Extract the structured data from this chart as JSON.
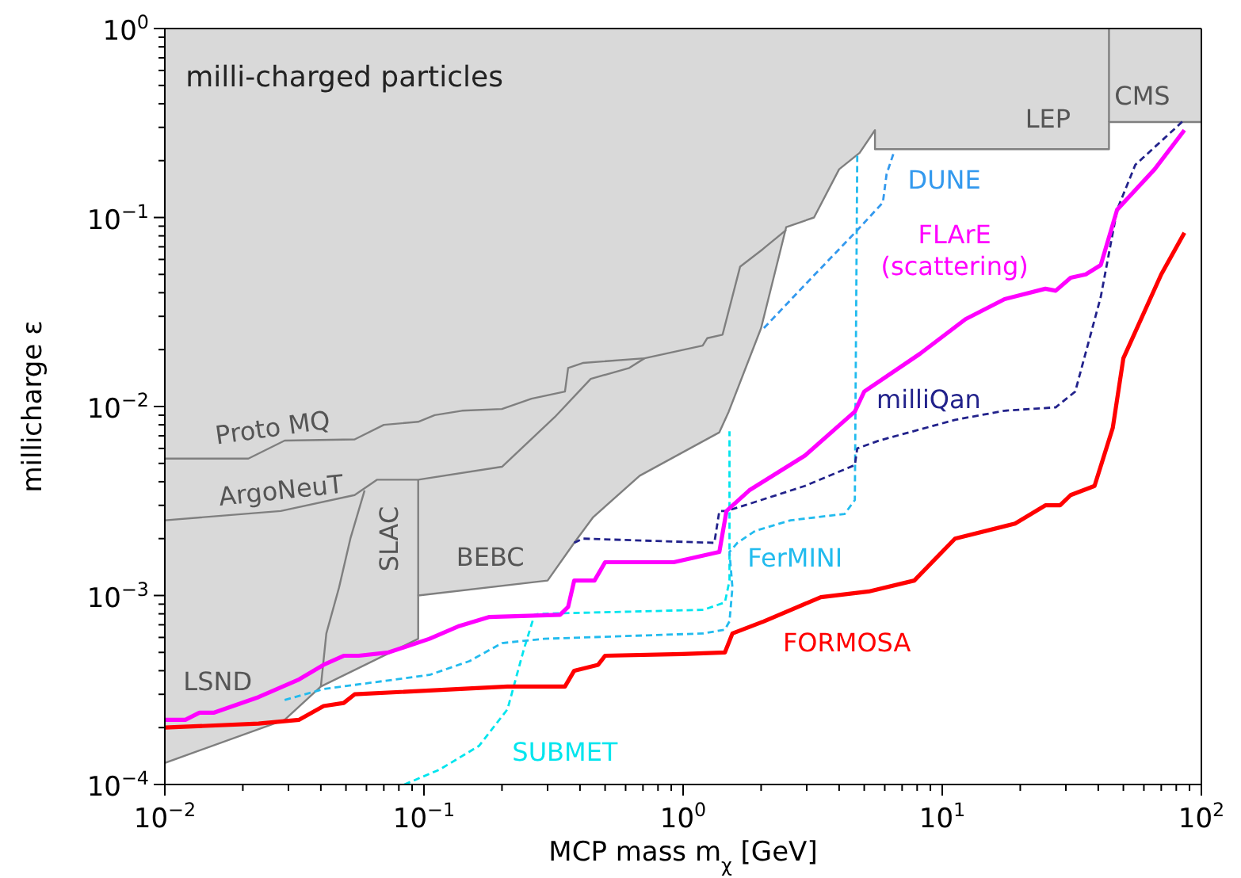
{
  "chart_data": {
    "type": "line",
    "xlabel": "MCP mass m$_{χ}$ [GeV]",
    "ylabel": "millicharge ε",
    "log": "xy",
    "xlim": [
      0.01,
      100
    ],
    "ylim": [
      0.0001,
      1
    ],
    "xticks": [
      {
        "value": 0.01,
        "label": "10$^{−2}$"
      },
      {
        "value": 0.02,
        "label": null
      },
      {
        "value": 0.03,
        "label": null
      },
      {
        "value": 0.04,
        "label": null
      },
      {
        "value": 0.05,
        "label": null
      },
      {
        "value": 0.06,
        "label": null
      },
      {
        "value": 0.07,
        "label": null
      },
      {
        "value": 0.08,
        "label": null
      },
      {
        "value": 0.09,
        "label": null
      },
      {
        "value": 0.1,
        "label": "10$^{−1}$"
      },
      {
        "value": 0.2,
        "label": null
      },
      {
        "value": 0.3,
        "label": null
      },
      {
        "value": 0.4,
        "label": null
      },
      {
        "value": 0.5,
        "label": null
      },
      {
        "value": 0.6,
        "label": null
      },
      {
        "value": 0.7,
        "label": null
      },
      {
        "value": 0.8,
        "label": null
      },
      {
        "value": 0.9,
        "label": null
      },
      {
        "value": 1,
        "label": "10$^{0}$"
      },
      {
        "value": 2,
        "label": null
      },
      {
        "value": 3,
        "label": null
      },
      {
        "value": 4,
        "label": null
      },
      {
        "value": 5,
        "label": null
      },
      {
        "value": 6,
        "label": null
      },
      {
        "value": 7,
        "label": null
      },
      {
        "value": 8,
        "label": null
      },
      {
        "value": 9,
        "label": null
      },
      {
        "value": 10,
        "label": "10$^{1}$"
      },
      {
        "value": 20,
        "label": null
      },
      {
        "value": 30,
        "label": null
      },
      {
        "value": 40,
        "label": null
      },
      {
        "value": 50,
        "label": null
      },
      {
        "value": 60,
        "label": null
      },
      {
        "value": 70,
        "label": null
      },
      {
        "value": 80,
        "label": null
      },
      {
        "value": 90,
        "label": null
      },
      {
        "value": 100,
        "label": "10$^{2}$"
      }
    ],
    "yticks": [
      {
        "value": 0.0001,
        "label": "10$^{−4}$"
      },
      {
        "value": 0.0002,
        "label": null
      },
      {
        "value": 0.0003,
        "label": null
      },
      {
        "value": 0.0004,
        "label": null
      },
      {
        "value": 0.0005,
        "label": null
      },
      {
        "value": 0.0006,
        "label": null
      },
      {
        "value": 0.0007,
        "label": null
      },
      {
        "value": 0.0008,
        "label": null
      },
      {
        "value": 0.0009,
        "label": null
      },
      {
        "value": 0.001,
        "label": "10$^{−3}$"
      },
      {
        "value": 0.002,
        "label": null
      },
      {
        "value": 0.003,
        "label": null
      },
      {
        "value": 0.004,
        "label": null
      },
      {
        "value": 0.005,
        "label": null
      },
      {
        "value": 0.006,
        "label": null
      },
      {
        "value": 0.007,
        "label": null
      },
      {
        "value": 0.008,
        "label": null
      },
      {
        "value": 0.009,
        "label": null
      },
      {
        "value": 0.01,
        "label": "10$^{−2}$"
      },
      {
        "value": 0.02,
        "label": null
      },
      {
        "value": 0.03,
        "label": null
      },
      {
        "value": 0.04,
        "label": null
      },
      {
        "value": 0.05,
        "label": null
      },
      {
        "value": 0.06,
        "label": null
      },
      {
        "value": 0.07,
        "label": null
      },
      {
        "value": 0.08,
        "label": null
      },
      {
        "value": 0.09,
        "label": null
      },
      {
        "value": 0.1,
        "label": "10$^{−1}$"
      },
      {
        "value": 0.2,
        "label": null
      },
      {
        "value": 0.3,
        "label": null
      },
      {
        "value": 0.4,
        "label": null
      },
      {
        "value": 0.5,
        "label": null
      },
      {
        "value": 0.6,
        "label": null
      },
      {
        "value": 0.7,
        "label": null
      },
      {
        "value": 0.8,
        "label": null
      },
      {
        "value": 0.9,
        "label": null
      },
      {
        "value": 1,
        "label": "10$^{0}$"
      }
    ],
    "series": [
      {
        "color": "#7f7f7f",
        "line_style": "solid",
        "x": [
          0.01,
          0.029,
          0.04,
          0.095,
          0.095,
          0.3,
          0.38,
          0.45,
          0.68,
          1.38,
          1.5,
          2.0,
          2.5,
          3.2,
          4.0,
          4.8,
          5.5,
          5.5,
          44,
          44,
          100
        ],
        "values": [
          0.00013,
          0.00022,
          0.00033,
          0.00059,
          0.001,
          0.0012,
          0.0019,
          0.0026,
          0.0043,
          0.0073,
          0.0094,
          0.026,
          0.089,
          0.1,
          0.18,
          0.22,
          0.29,
          0.23,
          0.23,
          0.32,
          0.32
        ],
        "lower": [
          0.00013,
          0.00022,
          0.00033,
          0.00059,
          0.001,
          0.0012,
          0.0019,
          0.0026,
          0.0043,
          0.0073,
          0.0094,
          0.026,
          0.089,
          0.1,
          0.18,
          0.22,
          0.29,
          0.23,
          0.23,
          0.32,
          0.32
        ],
        "upper": [
          1,
          1,
          1,
          1,
          1,
          1,
          1,
          1,
          1,
          1,
          1,
          1,
          1,
          1,
          1,
          1,
          1,
          1,
          1,
          1,
          1
        ]
      },
      {
        "color": "#7f7f7f",
        "line_style": "solid",
        "x": [
          0.059,
          0.052,
          0.047,
          0.042,
          0.04
        ],
        "values": [
          0.0036,
          0.002,
          0.0011,
          0.00063,
          0.00033
        ]
      },
      {
        "color": "#7f7f7f",
        "line_style": "solid",
        "x": [
          0.095,
          0.095
        ],
        "values": [
          0.0041,
          0.001
        ]
      },
      {
        "color": "#7f7f7f",
        "line_style": "solid",
        "x": [
          44,
          44
        ],
        "values": [
          1,
          0.32
        ]
      },
      {
        "color": "#7f7f7f",
        "line_style": "solid",
        "x": [
          0.01,
          0.028,
          0.054,
          0.066,
          0.095,
          0.2,
          0.32,
          0.44,
          0.62,
          0.71
        ],
        "values": [
          0.0025,
          0.0028,
          0.0034,
          0.0041,
          0.0041,
          0.0048,
          0.0088,
          0.014,
          0.016,
          0.018
        ]
      },
      {
        "color": "#7f7f7f",
        "line_style": "solid",
        "x": [
          0.01,
          0.021,
          0.029,
          0.054,
          0.07,
          0.095,
          0.11,
          0.14,
          0.2,
          0.26,
          0.35,
          0.36,
          0.41,
          0.71,
          1.19,
          1.24,
          1.42,
          1.66,
          2.03,
          2.5
        ],
        "values": [
          0.0053,
          0.0053,
          0.0066,
          0.0067,
          0.008,
          0.0083,
          0.009,
          0.0095,
          0.0097,
          0.011,
          0.012,
          0.016,
          0.017,
          0.018,
          0.021,
          0.023,
          0.024,
          0.055,
          0.068,
          0.086
        ]
      },
      {
        "name": "SUBMET",
        "color": "#00e5ee",
        "line_style": "dashed",
        "x": [
          0.084,
          0.115,
          0.163,
          0.21,
          0.243,
          0.267,
          0.28,
          1.2,
          1.45,
          1.51,
          1.51
        ],
        "values": [
          0.0001,
          0.00012,
          0.00016,
          0.00025,
          0.00052,
          0.00079,
          0.0008,
          0.00084,
          0.00092,
          0.0012,
          0.0074
        ]
      },
      {
        "name": "FerMINI",
        "color": "#22bbee",
        "line_style": "dashed",
        "x": [
          0.029,
          0.041,
          0.105,
          0.15,
          0.2,
          0.29,
          1.2,
          1.45,
          1.51,
          1.55,
          1.51,
          1.62,
          1.9,
          2.6,
          4.2,
          4.6,
          4.7
        ],
        "values": [
          0.00028,
          0.00032,
          0.00038,
          0.00045,
          0.00056,
          0.00059,
          0.00063,
          0.00066,
          0.00073,
          0.0011,
          0.0017,
          0.0019,
          0.0022,
          0.0025,
          0.0027,
          0.0032,
          0.22
        ]
      },
      {
        "name": "DUNE",
        "color": "#3399ee",
        "line_style": "dashed",
        "x": [
          2.05,
          2.95,
          4.6,
          5.9,
          6.1,
          6.5
        ],
        "values": [
          0.026,
          0.044,
          0.083,
          0.12,
          0.17,
          0.22
        ]
      },
      {
        "name": "milliQan",
        "color": "#22228b",
        "line_style": "dashed",
        "x": [
          0.38,
          0.41,
          1.32,
          1.38,
          1.47,
          1.73,
          2.95,
          4.6,
          4.7,
          5.7,
          11.2,
          17.4,
          27.4,
          32.6,
          40.9,
          47.3,
          55.6,
          80,
          86
        ],
        "values": [
          0.0019,
          0.002,
          0.0019,
          0.0028,
          0.0028,
          0.003,
          0.0038,
          0.0049,
          0.006,
          0.0066,
          0.0085,
          0.0095,
          0.0099,
          0.012,
          0.038,
          0.11,
          0.19,
          0.3,
          0.33
        ]
      },
      {
        "name": "FLArE (scattering)",
        "color": "#ff00ff",
        "line_style": "solid",
        "x": [
          0.01,
          0.012,
          0.0136,
          0.0155,
          0.023,
          0.033,
          0.041,
          0.049,
          0.056,
          0.073,
          0.105,
          0.137,
          0.179,
          0.335,
          0.36,
          0.38,
          0.455,
          0.5,
          0.92,
          1.38,
          1.47,
          1.8,
          2.95,
          4.6,
          5.0,
          8.2,
          12.3,
          17.4,
          25,
          27.4,
          31.3,
          35.8,
          40.9,
          47.3,
          66,
          86
        ],
        "values": [
          0.00022,
          0.00022,
          0.00024,
          0.00024,
          0.00029,
          0.00036,
          0.00043,
          0.00048,
          0.00048,
          0.0005,
          0.00059,
          0.00069,
          0.00077,
          0.00079,
          0.00087,
          0.0012,
          0.0012,
          0.0015,
          0.0015,
          0.0017,
          0.0028,
          0.0036,
          0.0055,
          0.0094,
          0.012,
          0.019,
          0.029,
          0.037,
          0.042,
          0.041,
          0.048,
          0.05,
          0.056,
          0.11,
          0.18,
          0.29
        ]
      },
      {
        "name": "FORMOSA",
        "color": "#ff0000",
        "line_style": "solid",
        "x": [
          0.01,
          0.023,
          0.033,
          0.041,
          0.049,
          0.054,
          0.21,
          0.35,
          0.38,
          0.47,
          0.5,
          0.99,
          1.45,
          1.55,
          2.05,
          3.4,
          5.2,
          7.8,
          11.2,
          19.1,
          25,
          28.5,
          31.3,
          38.7,
          45.5,
          50,
          70,
          86
        ],
        "values": [
          0.0002,
          0.00021,
          0.00022,
          0.00026,
          0.00027,
          0.0003,
          0.00033,
          0.00033,
          0.0004,
          0.00043,
          0.00048,
          0.00049,
          0.0005,
          0.00063,
          0.00073,
          0.00098,
          0.00105,
          0.0012,
          0.002,
          0.0024,
          0.003,
          0.003,
          0.0034,
          0.0038,
          0.0077,
          0.018,
          0.05,
          0.083
        ]
      }
    ],
    "annotations": [
      "milli-charged particles",
      "Proto MQ",
      "ArgoNeuT",
      "LSND",
      "SLAC",
      "BEBC",
      "LEP",
      "CMS"
    ]
  }
}
